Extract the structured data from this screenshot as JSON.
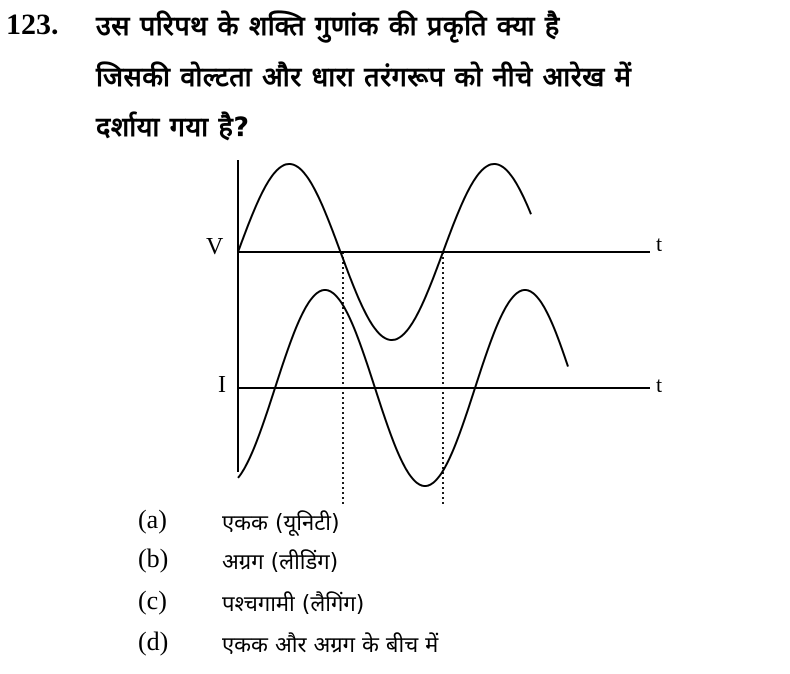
{
  "question": {
    "number": "123.",
    "lines": [
      "उस परिपथ के शक्ति गुणांक की प्रकृति क्या है",
      "जिसकी वोल्टता और धारा तरंगरूप को नीचे आरेख में",
      "दर्शाया गया है?"
    ]
  },
  "diagram": {
    "v_label": "V",
    "i_label": "I",
    "t_label_top": "t",
    "t_label_bottom": "t"
  },
  "options": [
    {
      "label": "(a)",
      "text": "एकक (यूनिटी)"
    },
    {
      "label": "(b)",
      "text": "अग्रग (लीडिंग)"
    },
    {
      "label": "(c)",
      "text": "पश्चगामी (लैगिंग)"
    },
    {
      "label": "(d)",
      "text": "एकक और अग्रग के बीच में"
    }
  ]
}
